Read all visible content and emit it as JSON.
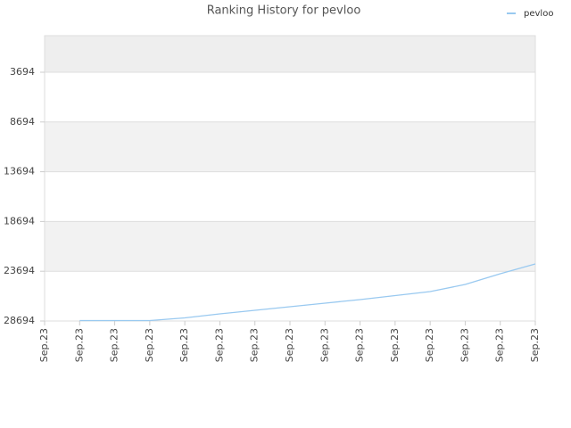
{
  "chart_data": {
    "type": "line",
    "title": "Ranking History for pevloo",
    "categories": [
      "Sep.23",
      "Sep.23",
      "Sep.23",
      "Sep.23",
      "Sep.23",
      "Sep.23",
      "Sep.23",
      "Sep.23",
      "Sep.23",
      "Sep.23",
      "Sep.23",
      "Sep.23",
      "Sep.23",
      "Sep.23",
      "Sep.23"
    ],
    "series": [
      {
        "name": "pevloo",
        "color": "#99c9f0",
        "values": [
          null,
          28650,
          28650,
          28650,
          28380,
          27980,
          27620,
          27260,
          26900,
          26540,
          26140,
          25740,
          25020,
          23940,
          22960
        ]
      }
    ],
    "ylim": [
      28694,
      20
    ],
    "yticks": [
      3694,
      8694,
      13694,
      18694,
      23694,
      28694
    ],
    "grid": true,
    "legend": "top-right"
  }
}
